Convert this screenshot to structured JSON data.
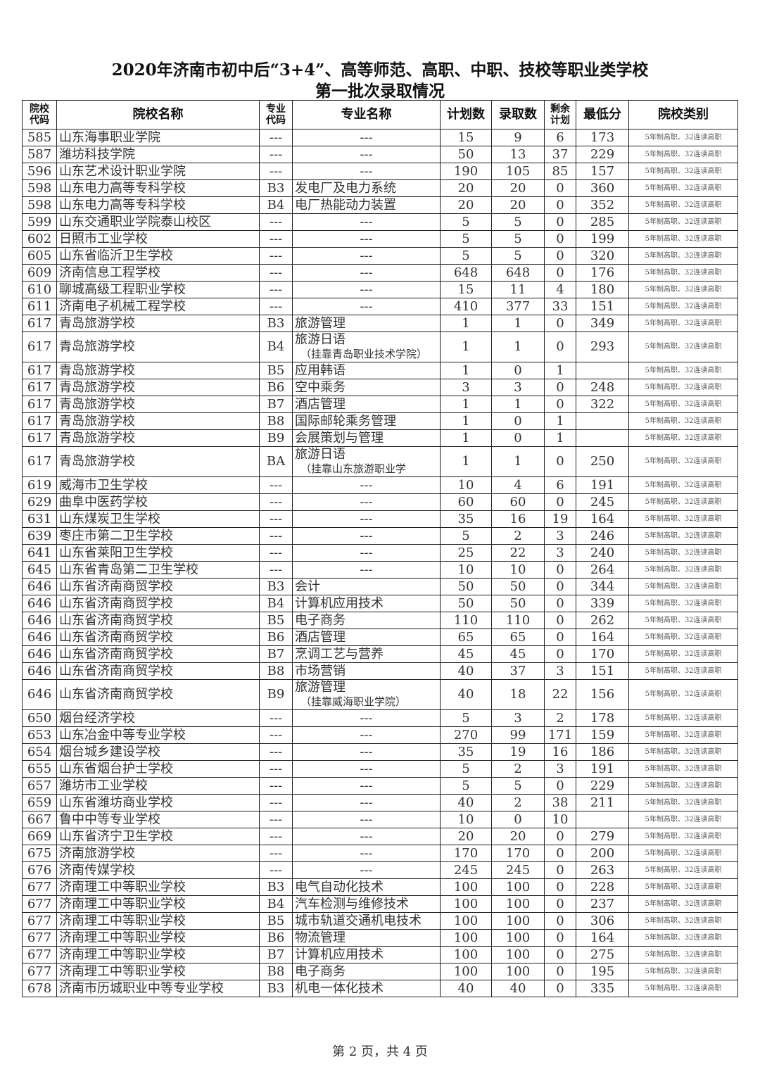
{
  "title_line1": "2020年济南市初中后“3+4”、高等师范、高职、中职、技校等职业类学校",
  "title_line2": "第一批次录取情况",
  "headers": {
    "school_code": "院校\n代码",
    "school_name": "院校名称",
    "major_code": "专业\n代码",
    "major_name": "专业名称",
    "plan": "计划数",
    "admitted": "录取数",
    "remaining": "剩余\n计划",
    "min_score": "最低分",
    "category": "院校类别"
  },
  "rows": [
    [
      "585",
      "山东海事职业学院",
      "---",
      "---",
      "",
      "15",
      "9",
      "6",
      "173"
    ],
    [
      "587",
      "潍坊科技学院",
      "---",
      "---",
      "",
      "50",
      "13",
      "37",
      "229"
    ],
    [
      "596",
      "山东艺术设计职业学院",
      "---",
      "---",
      "",
      "190",
      "105",
      "85",
      "157"
    ],
    [
      "598",
      "山东电力高等专科学校",
      "B3",
      "发电厂及电力系统",
      "",
      "20",
      "20",
      "0",
      "360"
    ],
    [
      "598",
      "山东电力高等专科学校",
      "B4",
      "电厂热能动力装置",
      "",
      "20",
      "20",
      "0",
      "352"
    ],
    [
      "599",
      "山东交通职业学院泰山校区",
      "---",
      "---",
      "",
      "5",
      "5",
      "0",
      "285"
    ],
    [
      "602",
      "日照市工业学校",
      "---",
      "---",
      "",
      "5",
      "5",
      "0",
      "199"
    ],
    [
      "605",
      "山东省临沂卫生学校",
      "---",
      "---",
      "",
      "5",
      "5",
      "0",
      "320"
    ],
    [
      "609",
      "济南信息工程学校",
      "---",
      "---",
      "",
      "648",
      "648",
      "0",
      "176"
    ],
    [
      "610",
      "聊城高级工程职业学校",
      "---",
      "---",
      "",
      "15",
      "11",
      "4",
      "180"
    ],
    [
      "611",
      "济南电子机械工程学校",
      "---",
      "---",
      "",
      "410",
      "377",
      "33",
      "151"
    ],
    [
      "617",
      "青岛旅游学校",
      "B3",
      "旅游管理",
      "",
      "1",
      "1",
      "0",
      "349"
    ],
    [
      "617",
      "青岛旅游学校",
      "B4",
      "旅游日语",
      "（挂靠青岛职业技术学院）",
      "1",
      "1",
      "0",
      "293"
    ],
    [
      "617",
      "青岛旅游学校",
      "B5",
      "应用韩语",
      "",
      "1",
      "0",
      "1",
      ""
    ],
    [
      "617",
      "青岛旅游学校",
      "B6",
      "空中乘务",
      "",
      "3",
      "3",
      "0",
      "248"
    ],
    [
      "617",
      "青岛旅游学校",
      "B7",
      "酒店管理",
      "",
      "1",
      "1",
      "0",
      "322"
    ],
    [
      "617",
      "青岛旅游学校",
      "B8",
      "国际邮轮乘务管理",
      "",
      "1",
      "0",
      "1",
      ""
    ],
    [
      "617",
      "青岛旅游学校",
      "B9",
      "会展策划与管理",
      "",
      "1",
      "0",
      "1",
      ""
    ],
    [
      "617",
      "青岛旅游学校",
      "BA",
      "旅游日语",
      "（挂靠山东旅游职业学",
      "1",
      "1",
      "0",
      "250"
    ],
    [
      "619",
      "威海市卫生学校",
      "---",
      "---",
      "",
      "10",
      "4",
      "6",
      "191"
    ],
    [
      "629",
      "曲阜中医药学校",
      "---",
      "---",
      "",
      "60",
      "60",
      "0",
      "245"
    ],
    [
      "631",
      "山东煤炭卫生学校",
      "---",
      "---",
      "",
      "35",
      "16",
      "19",
      "164"
    ],
    [
      "639",
      "枣庄市第二卫生学校",
      "---",
      "---",
      "",
      "5",
      "2",
      "3",
      "246"
    ],
    [
      "641",
      "山东省莱阳卫生学校",
      "---",
      "---",
      "",
      "25",
      "22",
      "3",
      "240"
    ],
    [
      "645",
      "山东省青岛第二卫生学校",
      "---",
      "---",
      "",
      "10",
      "10",
      "0",
      "264"
    ],
    [
      "646",
      "山东省济南商贸学校",
      "B3",
      "会计",
      "",
      "50",
      "50",
      "0",
      "344"
    ],
    [
      "646",
      "山东省济南商贸学校",
      "B4",
      "计算机应用技术",
      "",
      "50",
      "50",
      "0",
      "339"
    ],
    [
      "646",
      "山东省济南商贸学校",
      "B5",
      "电子商务",
      "",
      "110",
      "110",
      "0",
      "262"
    ],
    [
      "646",
      "山东省济南商贸学校",
      "B6",
      "酒店管理",
      "",
      "65",
      "65",
      "0",
      "164"
    ],
    [
      "646",
      "山东省济南商贸学校",
      "B7",
      "烹调工艺与营养",
      "",
      "45",
      "45",
      "0",
      "170"
    ],
    [
      "646",
      "山东省济南商贸学校",
      "B8",
      "市场营销",
      "",
      "40",
      "37",
      "3",
      "151"
    ],
    [
      "646",
      "山东省济南商贸学校",
      "B9",
      "旅游管理",
      "（挂靠威海职业学院）",
      "40",
      "18",
      "22",
      "156"
    ],
    [
      "650",
      "烟台经济学校",
      "---",
      "---",
      "",
      "5",
      "3",
      "2",
      "178"
    ],
    [
      "653",
      "山东冶金中等专业学校",
      "---",
      "---",
      "",
      "270",
      "99",
      "171",
      "159"
    ],
    [
      "654",
      "烟台城乡建设学校",
      "---",
      "---",
      "",
      "35",
      "19",
      "16",
      "186"
    ],
    [
      "655",
      "山东省烟台护士学校",
      "---",
      "---",
      "",
      "5",
      "2",
      "3",
      "191"
    ],
    [
      "657",
      "潍坊市工业学校",
      "---",
      "---",
      "",
      "5",
      "5",
      "0",
      "229"
    ],
    [
      "659",
      "山东省潍坊商业学校",
      "---",
      "---",
      "",
      "40",
      "2",
      "38",
      "211"
    ],
    [
      "667",
      "鲁中中等专业学校",
      "---",
      "---",
      "",
      "10",
      "0",
      "10",
      ""
    ],
    [
      "669",
      "山东省济宁卫生学校",
      "---",
      "---",
      "",
      "20",
      "20",
      "0",
      "279"
    ],
    [
      "675",
      "济南旅游学校",
      "---",
      "---",
      "",
      "170",
      "170",
      "0",
      "200"
    ],
    [
      "676",
      "济南传媒学校",
      "---",
      "---",
      "",
      "245",
      "245",
      "0",
      "263"
    ],
    [
      "677",
      "济南理工中等职业学校",
      "B3",
      "电气自动化技术",
      "",
      "100",
      "100",
      "0",
      "228"
    ],
    [
      "677",
      "济南理工中等职业学校",
      "B4",
      "汽车检测与维修技术",
      "",
      "100",
      "100",
      "0",
      "237"
    ],
    [
      "677",
      "济南理工中等职业学校",
      "B5",
      "城市轨道交通机电技术",
      "",
      "100",
      "100",
      "0",
      "306"
    ],
    [
      "677",
      "济南理工中等职业学校",
      "B6",
      "物流管理",
      "",
      "100",
      "100",
      "0",
      "164"
    ],
    [
      "677",
      "济南理工中等职业学校",
      "B7",
      "计算机应用技术",
      "",
      "100",
      "100",
      "0",
      "275"
    ],
    [
      "677",
      "济南理工中等职业学校",
      "B8",
      "电子商务",
      "",
      "100",
      "100",
      "0",
      "195"
    ],
    [
      "678",
      "济南市历城职业中等专业学校",
      "B3",
      "机电一体化技术",
      "",
      "40",
      "40",
      "0",
      "335"
    ]
  ],
  "category_value": "5年制高职、32连读高职",
  "footer": "第 2 页，共 4 页"
}
